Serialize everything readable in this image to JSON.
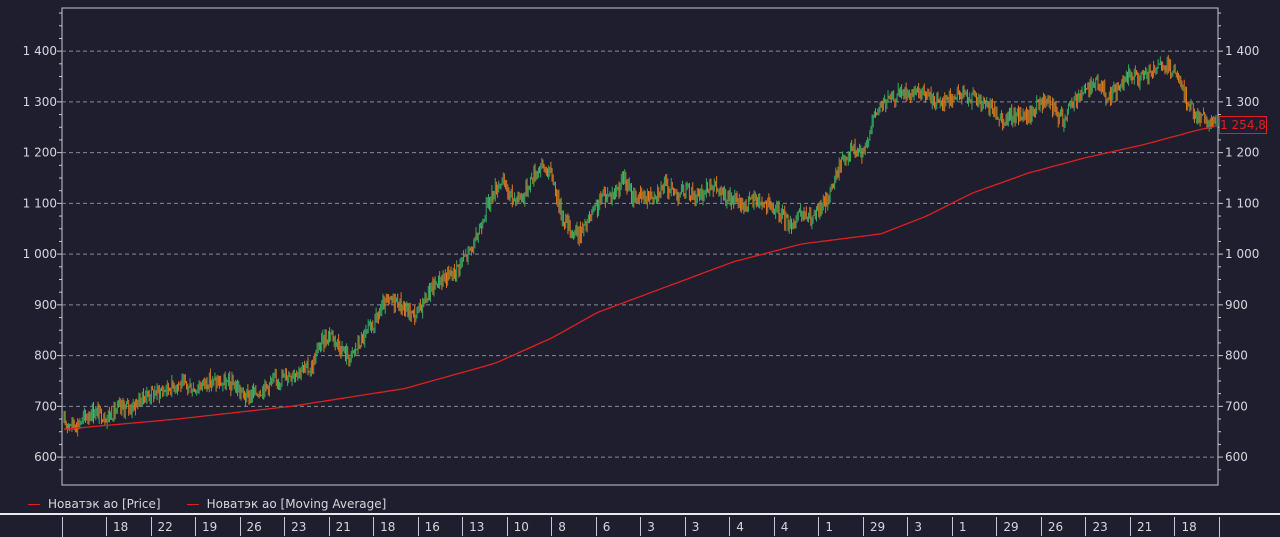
{
  "chart_data": {
    "type": "line",
    "yticks": [
      "1 400",
      "1 300",
      "1 200",
      "1 100",
      "1 000",
      "900",
      "800",
      "700",
      "600"
    ],
    "ytick_values": [
      1400,
      1300,
      1200,
      1100,
      1000,
      900,
      800,
      700,
      600
    ],
    "ylim": [
      545,
      1485
    ],
    "grid": true,
    "x_labels": [
      "18",
      "22",
      "19",
      "26",
      "23",
      "21",
      "18",
      "16",
      "13",
      "10",
      "8",
      "6",
      "3",
      "3",
      "4",
      "4",
      "1",
      "29",
      "3",
      "1",
      "29",
      "26",
      "23",
      "21",
      "18"
    ],
    "series": [
      {
        "name": "Новатэк ао [Price]",
        "style": "ohlc",
        "up_color": "#3aa860",
        "down_color": "#e07820",
        "anchors": [
          [
            0,
            668
          ],
          [
            12,
            665
          ],
          [
            25,
            690
          ],
          [
            38,
            680
          ],
          [
            48,
            695
          ],
          [
            60,
            700
          ],
          [
            72,
            722
          ],
          [
            85,
            730
          ],
          [
            100,
            745
          ],
          [
            115,
            735
          ],
          [
            126,
            750
          ],
          [
            140,
            745
          ],
          [
            150,
            742
          ],
          [
            160,
            718
          ],
          [
            170,
            728
          ],
          [
            182,
            745
          ],
          [
            195,
            760
          ],
          [
            205,
            770
          ],
          [
            218,
            775
          ],
          [
            225,
            820
          ],
          [
            235,
            845
          ],
          [
            245,
            812
          ],
          [
            252,
            795
          ],
          [
            262,
            830
          ],
          [
            272,
            858
          ],
          [
            282,
            900
          ],
          [
            292,
            910
          ],
          [
            302,
            888
          ],
          [
            310,
            878
          ],
          [
            320,
            920
          ],
          [
            330,
            948
          ],
          [
            342,
            960
          ],
          [
            352,
            990
          ],
          [
            362,
            1020
          ],
          [
            370,
            1080
          ],
          [
            378,
            1120
          ],
          [
            385,
            1145
          ],
          [
            395,
            1110
          ],
          [
            405,
            1115
          ],
          [
            412,
            1150
          ],
          [
            420,
            1175
          ],
          [
            430,
            1155
          ],
          [
            438,
            1080
          ],
          [
            447,
            1045
          ],
          [
            455,
            1040
          ],
          [
            465,
            1075
          ],
          [
            475,
            1115
          ],
          [
            485,
            1120
          ],
          [
            493,
            1150
          ],
          [
            500,
            1115
          ],
          [
            510,
            1110
          ],
          [
            520,
            1120
          ],
          [
            530,
            1135
          ],
          [
            540,
            1120
          ],
          [
            550,
            1125
          ],
          [
            560,
            1110
          ],
          [
            570,
            1140
          ],
          [
            580,
            1115
          ],
          [
            590,
            1105
          ],
          [
            600,
            1095
          ],
          [
            610,
            1110
          ],
          [
            620,
            1095
          ],
          [
            630,
            1080
          ],
          [
            640,
            1060
          ],
          [
            650,
            1075
          ],
          [
            660,
            1070
          ],
          [
            670,
            1100
          ],
          [
            678,
            1140
          ],
          [
            686,
            1190
          ],
          [
            695,
            1205
          ],
          [
            705,
            1195
          ],
          [
            710,
            1250
          ],
          [
            718,
            1290
          ],
          [
            728,
            1305
          ],
          [
            738,
            1320
          ],
          [
            748,
            1310
          ],
          [
            758,
            1318
          ],
          [
            768,
            1300
          ],
          [
            778,
            1305
          ],
          [
            790,
            1315
          ],
          [
            800,
            1310
          ],
          [
            810,
            1295
          ],
          [
            820,
            1280
          ],
          [
            830,
            1265
          ],
          [
            840,
            1275
          ],
          [
            850,
            1270
          ],
          [
            860,
            1300
          ],
          [
            870,
            1290
          ],
          [
            880,
            1265
          ],
          [
            890,
            1305
          ],
          [
            900,
            1325
          ],
          [
            910,
            1340
          ],
          [
            920,
            1310
          ],
          [
            930,
            1330
          ],
          [
            940,
            1355
          ],
          [
            950,
            1345
          ],
          [
            960,
            1360
          ],
          [
            970,
            1370
          ],
          [
            980,
            1350
          ],
          [
            990,
            1300
          ],
          [
            1000,
            1270
          ],
          [
            1008,
            1262
          ],
          [
            1015,
            1255
          ]
        ]
      },
      {
        "name": "Новатэк ао [Moving Average]",
        "style": "line",
        "color": "#e02020",
        "anchors": [
          [
            0,
            655
          ],
          [
            100,
            675
          ],
          [
            200,
            700
          ],
          [
            300,
            735
          ],
          [
            380,
            785
          ],
          [
            430,
            835
          ],
          [
            470,
            885
          ],
          [
            530,
            935
          ],
          [
            590,
            985
          ],
          [
            650,
            1020
          ],
          [
            720,
            1040
          ],
          [
            760,
            1075
          ],
          [
            800,
            1120
          ],
          [
            850,
            1160
          ],
          [
            900,
            1190
          ],
          [
            950,
            1215
          ],
          [
            1000,
            1245
          ],
          [
            1015,
            1252
          ]
        ]
      }
    ],
    "last_value_label": "1 254,8"
  },
  "legend": {
    "price_label": "Новатэк ао [Price]",
    "ma_label": "Новатэк ао [Moving Average]"
  },
  "colors": {
    "background": "#1e1e2e",
    "up": "#3aa860",
    "down": "#e07820",
    "ma": "#e02020",
    "grid": "#8a8a96",
    "frame": "#c8c8d0"
  }
}
